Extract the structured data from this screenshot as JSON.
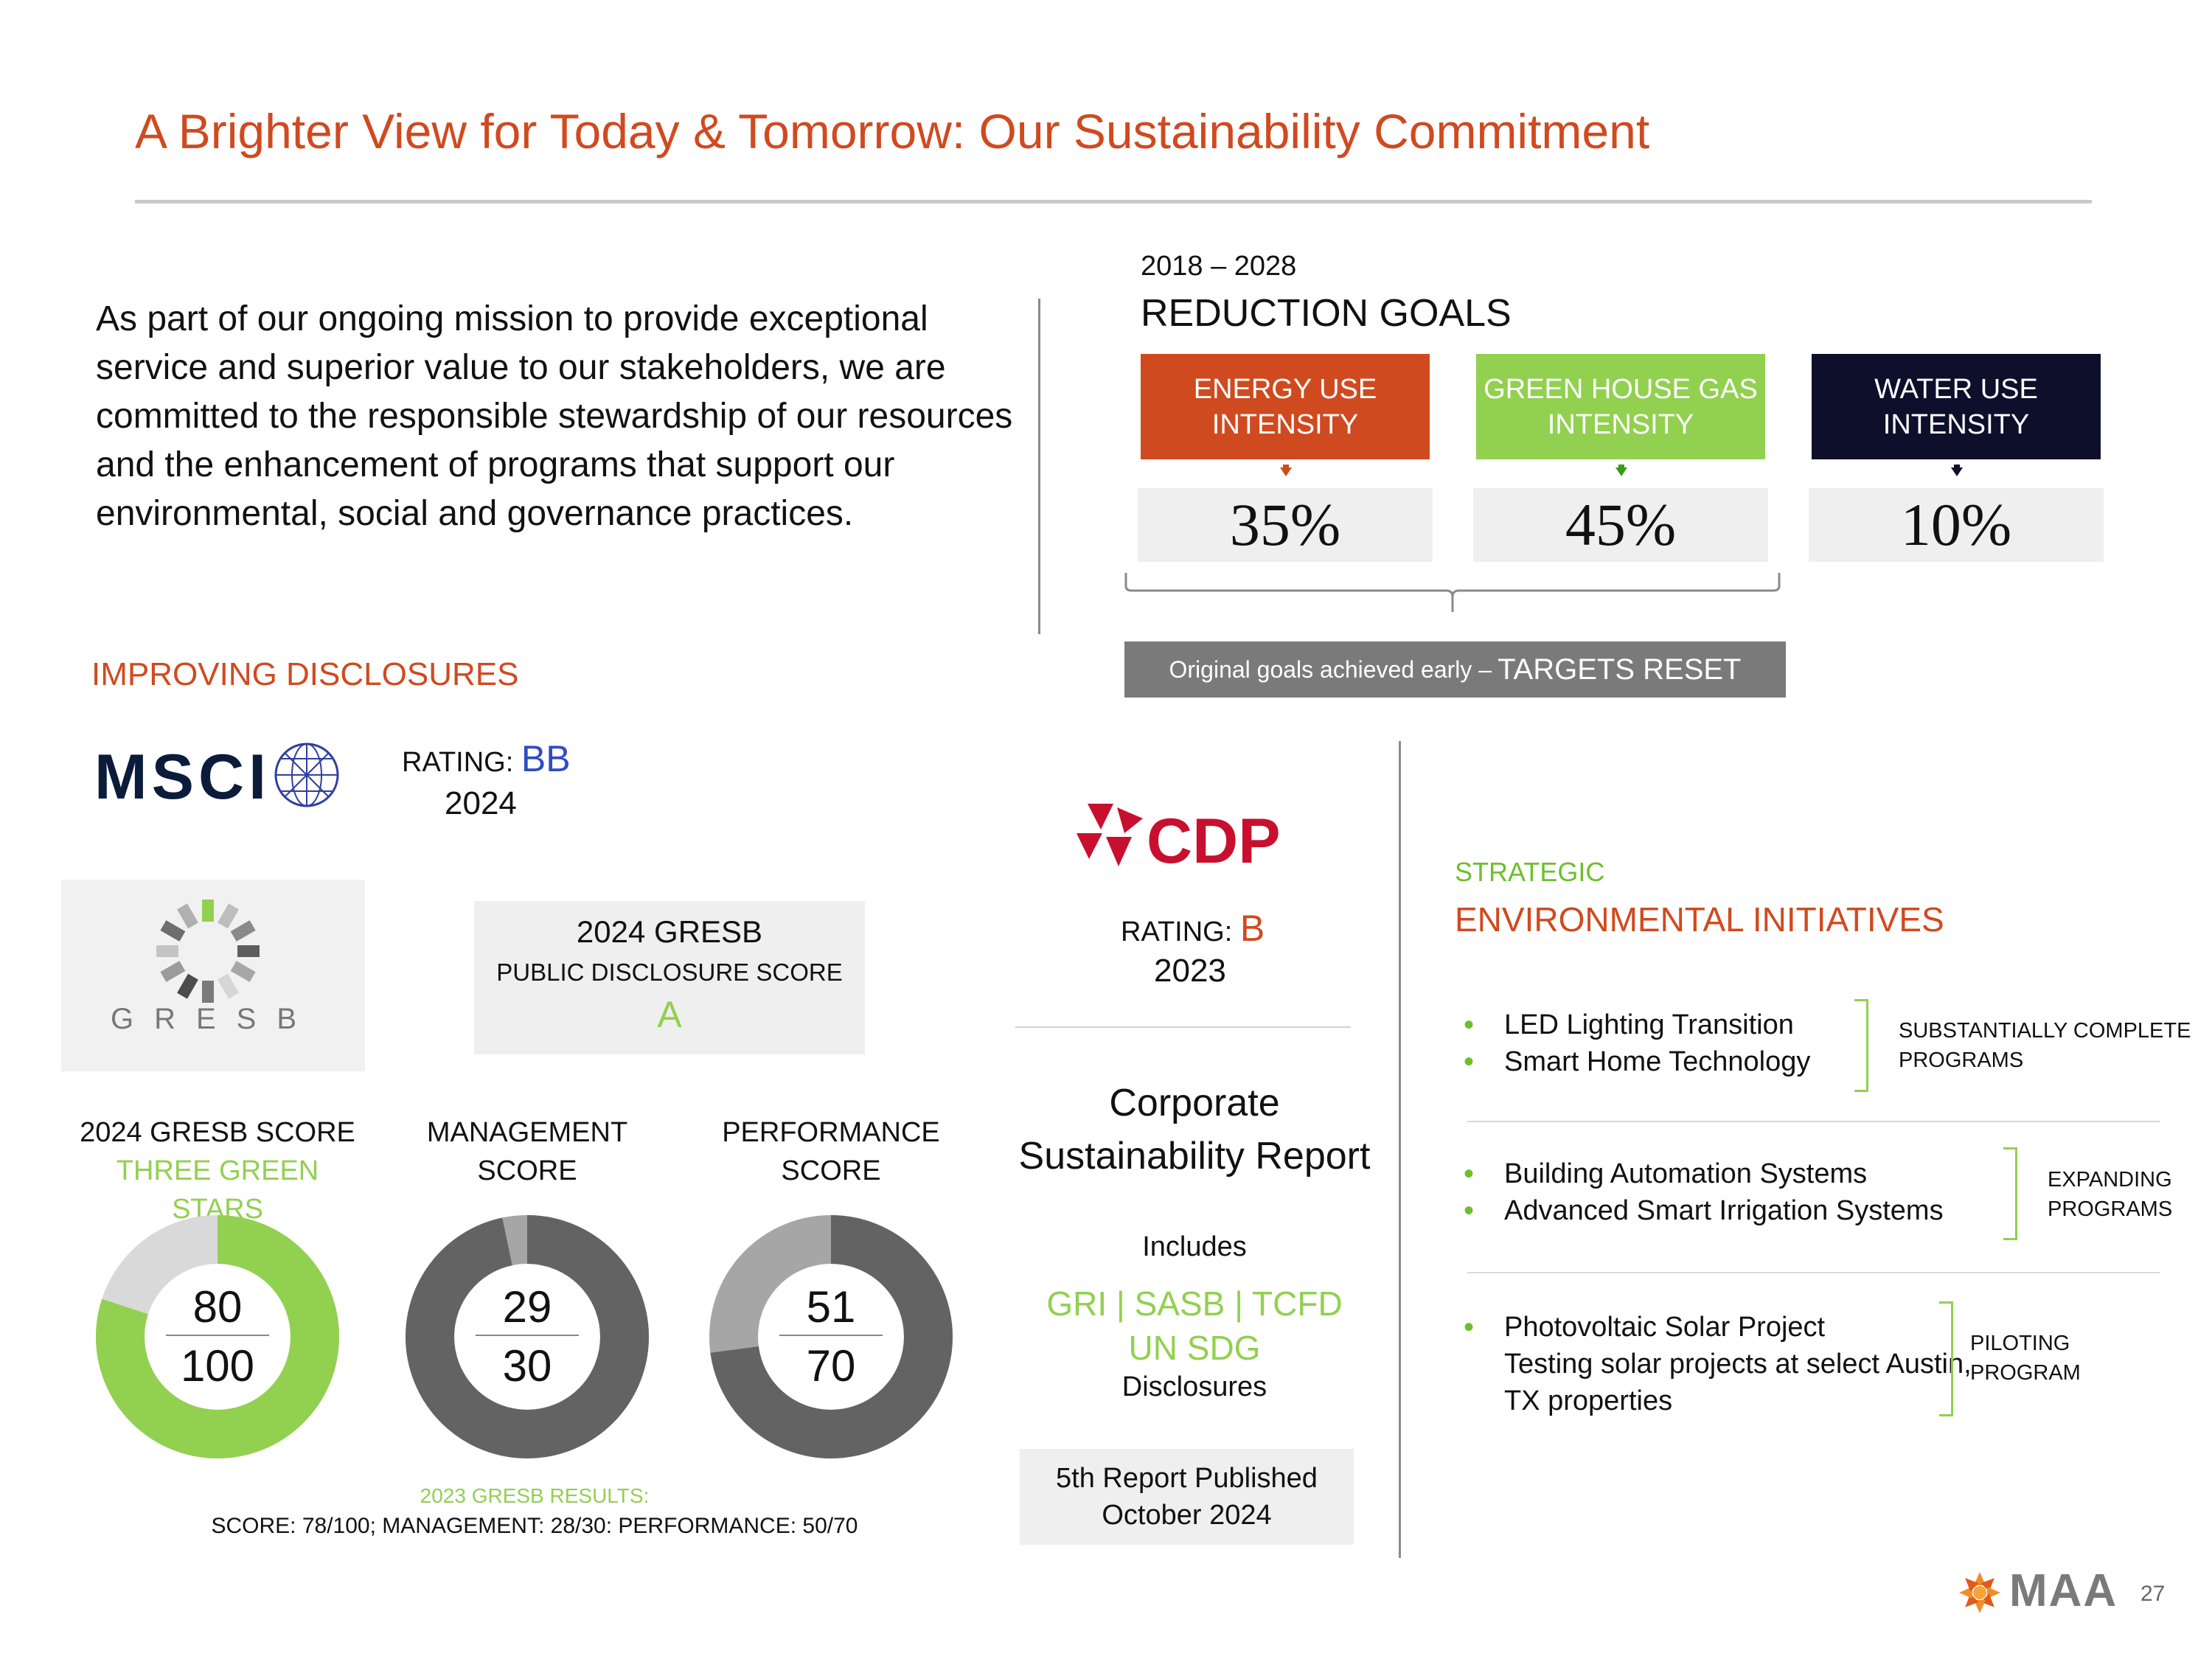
{
  "title": "A Brighter View for Today & Tomorrow: Our Sustainability Commitment",
  "intro": "As part of our ongoing mission to provide exceptional service and superior value to our stakeholders, we are committed to the responsible stewardship of our resources and the enhancement of programs that support our environmental, social and governance practices.",
  "reduction_goals": {
    "years": "2018 – 2028",
    "heading": "REDUCTION GOALS",
    "goals": [
      {
        "label": "ENERGY USE INTENSITY",
        "value": "35%",
        "color": "#D04A1F"
      },
      {
        "label": "GREEN HOUSE GAS INTENSITY",
        "value": "45%",
        "color": "#92D050"
      },
      {
        "label": "WATER USE INTENSITY",
        "value": "10%",
        "color": "#0D0F2B"
      }
    ],
    "reset_note_small": "Original goals achieved early –",
    "reset_note_big": "TARGETS RESET"
  },
  "disclosures": {
    "heading": "IMPROVING DISCLOSURES",
    "msci": {
      "logo": "MSCI",
      "rating_label": "RATING:",
      "rating": "BB",
      "year": "2024"
    },
    "gresb": {
      "logo": "GRESB",
      "pds_title": "2024 GRESB",
      "pds_sub": "PUBLIC DISCLOSURE SCORE",
      "pds_grade": "A",
      "scores": [
        {
          "title": "2024 GRESB SCORE",
          "subtitle": "THREE GREEN STARS",
          "value": "80",
          "max": "100",
          "fraction": 0.8,
          "fill": "#92D050",
          "track": "#D9D9D9"
        },
        {
          "title": "MANAGEMENT",
          "subtitle": "SCORE",
          "value": "29",
          "max": "30",
          "fraction": 0.9667,
          "fill": "#636363",
          "track": "#A6A6A6"
        },
        {
          "title": "PERFORMANCE",
          "subtitle": "SCORE",
          "value": "51",
          "max": "70",
          "fraction": 0.7286,
          "fill": "#636363",
          "track": "#A6A6A6"
        }
      ],
      "prior_label": "2023 GRESB RESULTS:",
      "prior_text": "SCORE: 78/100; MANAGEMENT: 28/30: PERFORMANCE: 50/70"
    }
  },
  "cdp": {
    "logo": "CDP",
    "rating_label": "RATING:",
    "rating": "B",
    "year": "2023",
    "report_title": "Corporate Sustainability Report",
    "includes": "Includes",
    "frameworks_line1": "GRI | SASB | TCFD",
    "frameworks_line2": "UN SDG",
    "disclosures": "Disclosures",
    "published_line1": "5th Report Published",
    "published_line2": "October 2024"
  },
  "initiatives": {
    "kicker": "STRATEGIC",
    "heading": "ENVIRONMENTAL INITIATIVES",
    "bullet": "•",
    "groups": [
      {
        "items": [
          "LED Lighting Transition",
          "Smart Home Technology"
        ],
        "status_line1": "SUBSTANTIALLY COMPLETE",
        "status_line2": "PROGRAMS"
      },
      {
        "items": [
          "Building Automation Systems",
          "Advanced Smart Irrigation Systems"
        ],
        "status_line1": "EXPANDING",
        "status_line2": "PROGRAMS"
      },
      {
        "items": [
          "Photovoltaic Solar Project",
          "Testing solar projects at select Austin,",
          "TX properties"
        ],
        "status_line1": "PILOTING",
        "status_line2": "PROGRAM"
      }
    ]
  },
  "footer": {
    "logo": "MAA",
    "page_number": "27"
  }
}
